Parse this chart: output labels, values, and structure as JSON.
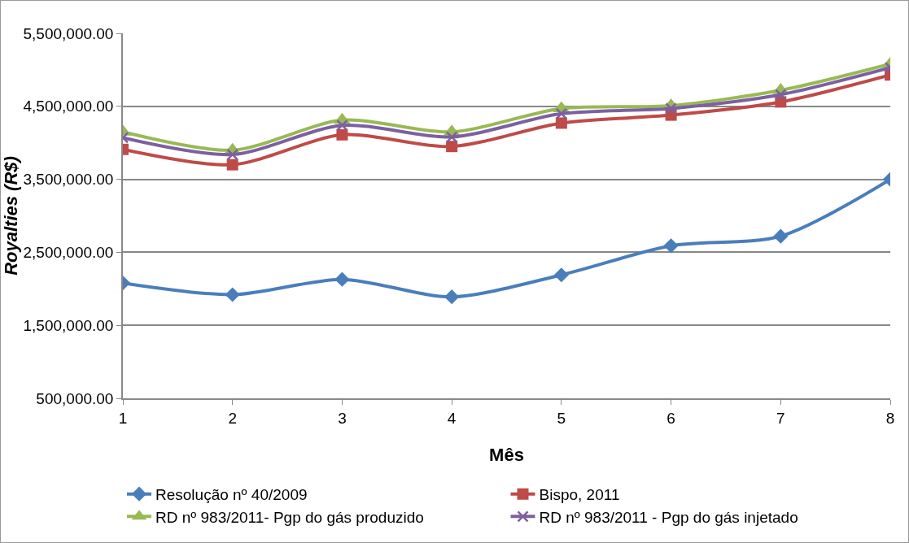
{
  "chart_data": {
    "type": "line",
    "xlabel": "Mês",
    "ylabel": "Royalties (R$)",
    "x": [
      1,
      2,
      3,
      4,
      5,
      6,
      7,
      8
    ],
    "series": [
      {
        "name": "Resolução nº 40/2009",
        "color": "#4a7ebb",
        "marker": "diamond",
        "values": [
          2080000,
          1920000,
          2130000,
          1890000,
          2190000,
          2590000,
          2720000,
          3500000
        ]
      },
      {
        "name": "Bispo, 2011",
        "color": "#be4b48",
        "marker": "square",
        "values": [
          3910000,
          3700000,
          4110000,
          3950000,
          4270000,
          4380000,
          4560000,
          4930000
        ]
      },
      {
        "name": "RD nº 983/2011- Pgp do gás produzido",
        "color": "#98b954",
        "marker": "triangle",
        "values": [
          4150000,
          3900000,
          4310000,
          4150000,
          4470000,
          4510000,
          4720000,
          5080000
        ]
      },
      {
        "name": "RD nº 983/2011 - Pgp do gás injetado",
        "color": "#7d60a0",
        "marker": "cross",
        "values": [
          4070000,
          3840000,
          4240000,
          4080000,
          4400000,
          4470000,
          4660000,
          5030000
        ]
      }
    ],
    "xlim": [
      1,
      8
    ],
    "xticks": [
      1,
      2,
      3,
      4,
      5,
      6,
      7,
      8
    ],
    "ylim": [
      500000,
      5500000
    ],
    "yticks": [
      {
        "value": 500000,
        "label": "500,000.00"
      },
      {
        "value": 1500000,
        "label": "1,500,000.00"
      },
      {
        "value": 2500000,
        "label": "2,500,000.00"
      },
      {
        "value": 3500000,
        "label": "3,500,000.00"
      },
      {
        "value": 4500000,
        "label": "4,500,000.00"
      },
      {
        "value": 5500000,
        "label": "5,500,000.00"
      }
    ],
    "grid": "y",
    "legend": "bottom",
    "line_style": "solid"
  }
}
